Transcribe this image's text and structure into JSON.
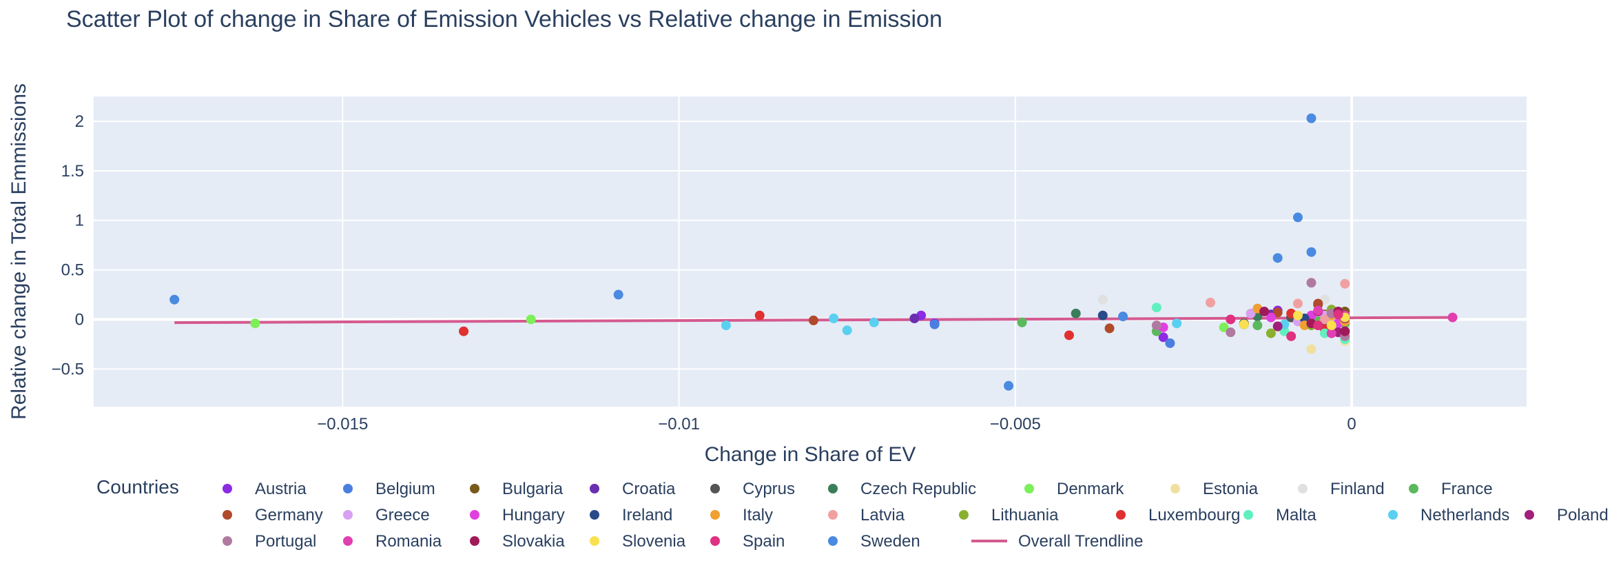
{
  "chart_data": {
    "type": "scatter",
    "title": "Scatter Plot of change in Share of Emission Vehicles vs Relative change in Emission",
    "xlabel": "Change in Share of EV",
    "ylabel": "Relative change in Total Emmissions",
    "xlim": [
      -0.0187,
      0.0026
    ],
    "ylim": [
      -0.88,
      2.25
    ],
    "x_ticks": [
      {
        "value": -0.015,
        "label": "−0.015"
      },
      {
        "value": -0.01,
        "label": "−0.01"
      },
      {
        "value": -0.005,
        "label": "−0.005"
      },
      {
        "value": 0,
        "label": "0"
      }
    ],
    "y_ticks": [
      {
        "value": -0.5,
        "label": "−0.5"
      },
      {
        "value": 0,
        "label": "0"
      },
      {
        "value": 0.5,
        "label": "0.5"
      },
      {
        "value": 1,
        "label": "1"
      },
      {
        "value": 1.5,
        "label": "1.5"
      },
      {
        "value": 2,
        "label": "2"
      }
    ],
    "grid": true,
    "legend_title": "Countries",
    "legend_placement": "bottom",
    "series": [
      {
        "name": "Austria",
        "color": "#8b2be2",
        "points": [
          [
            -0.0064,
            0.04
          ],
          [
            -0.0062,
            -0.04
          ],
          [
            -0.0028,
            -0.18
          ],
          [
            -0.0011,
            0.09
          ],
          [
            -0.0007,
            -0.02
          ],
          [
            -0.0003,
            0.03
          ]
        ]
      },
      {
        "name": "Belgium",
        "color": "#4a7fe0",
        "points": [
          [
            -0.0062,
            -0.05
          ],
          [
            -0.0027,
            -0.24
          ],
          [
            -0.0009,
            0.02
          ],
          [
            -0.0005,
            -0.06
          ],
          [
            -0.0002,
            0.01
          ]
        ]
      },
      {
        "name": "Bulgaria",
        "color": "#7a5a1c",
        "points": [
          [
            -0.0005,
            0.15
          ],
          [
            -0.0004,
            0.05
          ],
          [
            -0.0002,
            -0.04
          ],
          [
            -0.0001,
            0.08
          ]
        ]
      },
      {
        "name": "Croatia",
        "color": "#6a2fb0",
        "points": [
          [
            -0.0065,
            0.01
          ],
          [
            -0.0012,
            0.05
          ],
          [
            -0.0006,
            -0.03
          ],
          [
            -0.0003,
            0.02
          ]
        ]
      },
      {
        "name": "Cyprus",
        "color": "#555555",
        "points": [
          [
            -0.0016,
            -0.04
          ],
          [
            -0.0009,
            0.02
          ],
          [
            -0.0004,
            -0.02
          ],
          [
            -0.0001,
            0.03
          ]
        ]
      },
      {
        "name": "Czech Republic",
        "color": "#3a7d5a",
        "points": [
          [
            -0.0041,
            0.06
          ],
          [
            -0.0014,
            0.03
          ],
          [
            -0.0006,
            0.01
          ],
          [
            -0.0002,
            -0.03
          ]
        ]
      },
      {
        "name": "Denmark",
        "color": "#7cf05a",
        "points": [
          [
            -0.0163,
            -0.04
          ],
          [
            -0.0122,
            0.0
          ],
          [
            -0.0019,
            -0.08
          ],
          [
            -0.0007,
            -0.05
          ],
          [
            -0.0003,
            0.04
          ]
        ]
      },
      {
        "name": "Estonia",
        "color": "#f0e0a0",
        "points": [
          [
            -0.0011,
            -0.08
          ],
          [
            -0.0006,
            -0.3
          ],
          [
            -0.0003,
            0.02
          ],
          [
            -0.0001,
            -0.22
          ]
        ]
      },
      {
        "name": "Finland",
        "color": "#e0e0e0",
        "points": [
          [
            -0.0037,
            0.2
          ],
          [
            -0.0004,
            0.2
          ],
          [
            -0.0002,
            0.08
          ],
          [
            -0.0001,
            -0.06
          ]
        ]
      },
      {
        "name": "France",
        "color": "#5cb85c",
        "points": [
          [
            -0.0049,
            -0.03
          ],
          [
            -0.0029,
            -0.12
          ],
          [
            -0.0014,
            -0.06
          ],
          [
            -0.0005,
            -0.02
          ],
          [
            -0.0001,
            -0.04
          ]
        ]
      },
      {
        "name": "Germany",
        "color": "#b04a2a",
        "points": [
          [
            -0.008,
            -0.01
          ],
          [
            -0.0036,
            -0.09
          ],
          [
            -0.0011,
            0.07
          ],
          [
            -0.0005,
            0.16
          ],
          [
            -0.0002,
            0.05
          ]
        ]
      },
      {
        "name": "Greece",
        "color": "#d8a0f0",
        "points": [
          [
            -0.0015,
            0.06
          ],
          [
            -0.0008,
            -0.02
          ],
          [
            -0.0004,
            0.04
          ],
          [
            -0.0002,
            -0.02
          ]
        ]
      },
      {
        "name": "Hungary",
        "color": "#e040e0",
        "points": [
          [
            -0.0028,
            -0.08
          ],
          [
            -0.0012,
            0.02
          ],
          [
            -0.0006,
            0.04
          ],
          [
            -0.0002,
            -0.04
          ]
        ]
      },
      {
        "name": "Ireland",
        "color": "#2a4a8a",
        "points": [
          [
            -0.0037,
            0.04
          ],
          [
            -0.0016,
            -0.05
          ],
          [
            -0.0007,
            0.01
          ],
          [
            -0.0003,
            -0.06
          ]
        ]
      },
      {
        "name": "Italy",
        "color": "#f0a030",
        "points": [
          [
            -0.0014,
            0.11
          ],
          [
            -0.0007,
            -0.06
          ],
          [
            -0.0003,
            0.04
          ],
          [
            -0.0001,
            -0.02
          ]
        ]
      },
      {
        "name": "Latvia",
        "color": "#f0a0a0",
        "points": [
          [
            -0.0021,
            0.17
          ],
          [
            -0.0008,
            0.16
          ],
          [
            -0.0004,
            0.0
          ],
          [
            -0.0001,
            0.36
          ],
          [
            -0.0001,
            -0.13
          ]
        ]
      },
      {
        "name": "Lithuania",
        "color": "#8ab030",
        "points": [
          [
            -0.0012,
            -0.14
          ],
          [
            -0.0006,
            -0.06
          ],
          [
            -0.0003,
            0.1
          ],
          [
            -0.0001,
            0.02
          ]
        ]
      },
      {
        "name": "Luxembourg",
        "color": "#e03030",
        "points": [
          [
            -0.0132,
            -0.12
          ],
          [
            -0.0088,
            0.04
          ],
          [
            -0.0042,
            -0.16
          ],
          [
            -0.0009,
            0.06
          ],
          [
            -0.0004,
            -0.1
          ]
        ]
      },
      {
        "name": "Malta",
        "color": "#60f0c0",
        "points": [
          [
            -0.0029,
            0.12
          ],
          [
            -0.001,
            -0.12
          ],
          [
            -0.0004,
            -0.14
          ],
          [
            -0.0001,
            -0.2
          ]
        ]
      },
      {
        "name": "Netherlands",
        "color": "#5ad0f0",
        "points": [
          [
            -0.0093,
            -0.06
          ],
          [
            -0.0077,
            0.01
          ],
          [
            -0.0075,
            -0.11
          ],
          [
            -0.0071,
            -0.03
          ],
          [
            -0.0026,
            -0.04
          ],
          [
            -0.001,
            -0.05
          ]
        ]
      },
      {
        "name": "Poland",
        "color": "#a0207a",
        "points": [
          [
            -0.0011,
            -0.07
          ],
          [
            -0.0005,
            0.08
          ],
          [
            -0.0002,
            -0.13
          ],
          [
            -0.0001,
            0.01
          ]
        ]
      },
      {
        "name": "Portugal",
        "color": "#b07aa0",
        "points": [
          [
            -0.0029,
            -0.06
          ],
          [
            -0.0018,
            -0.13
          ],
          [
            -0.0006,
            0.37
          ],
          [
            -0.0003,
            0.06
          ],
          [
            -0.0001,
            -0.17
          ]
        ]
      },
      {
        "name": "Romania",
        "color": "#e040b0",
        "points": [
          [
            -0.0005,
            0.09
          ],
          [
            -0.0003,
            -0.14
          ],
          [
            -0.0001,
            0.04
          ],
          [
            0.0015,
            0.02
          ]
        ]
      },
      {
        "name": "Slovakia",
        "color": "#a01a5a",
        "points": [
          [
            -0.0013,
            0.08
          ],
          [
            -0.0006,
            -0.04
          ],
          [
            -0.0002,
            0.08
          ],
          [
            -0.0001,
            -0.12
          ]
        ]
      },
      {
        "name": "Slovenia",
        "color": "#f8e050",
        "points": [
          [
            -0.0016,
            -0.05
          ],
          [
            -0.0008,
            0.04
          ],
          [
            -0.0003,
            -0.06
          ],
          [
            -0.0001,
            0.02
          ]
        ]
      },
      {
        "name": "Spain",
        "color": "#e03080",
        "points": [
          [
            -0.0018,
            0.0
          ],
          [
            -0.0009,
            -0.17
          ],
          [
            -0.0005,
            -0.06
          ],
          [
            -0.0002,
            0.05
          ]
        ]
      },
      {
        "name": "Sweden",
        "color": "#4a8ae0",
        "points": [
          [
            -0.0175,
            0.2
          ],
          [
            -0.0109,
            0.25
          ],
          [
            -0.0051,
            -0.67
          ],
          [
            -0.0034,
            0.03
          ],
          [
            -0.0011,
            0.62
          ],
          [
            -0.0008,
            1.03
          ],
          [
            -0.0006,
            2.03
          ],
          [
            -0.0006,
            0.68
          ]
        ]
      }
    ],
    "trendline": {
      "name": "Overall Trendline",
      "color": "#d45a8f",
      "points": [
        [
          -0.0175,
          -0.032
        ],
        [
          0.0015,
          0.02
        ]
      ]
    }
  }
}
